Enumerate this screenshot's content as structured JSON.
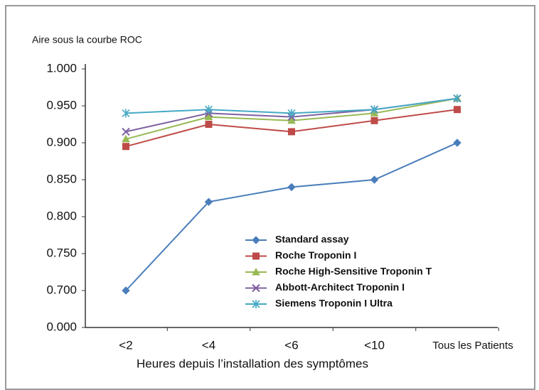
{
  "chart_data": {
    "type": "line",
    "y_axis_label": "Aire sous la courbe ROC",
    "x_axis_label": "Heures depuis l’installation des symptômes",
    "categories": [
      "<2",
      "<4",
      "<6",
      "<10",
      "Tous les Patients"
    ],
    "series": [
      {
        "name": "Standard assay",
        "color": "#4a7ebb",
        "marker": "diamond",
        "values": [
          0.7,
          0.82,
          0.84,
          0.85,
          0.9
        ]
      },
      {
        "name": "Roche Troponin I",
        "color": "#be4b48",
        "marker": "square",
        "values": [
          0.895,
          0.925,
          0.915,
          0.93,
          0.945
        ]
      },
      {
        "name": "Roche High-Sensitive Troponin T",
        "color": "#98b954",
        "marker": "triangle",
        "values": [
          0.905,
          0.935,
          0.93,
          0.94,
          0.96
        ]
      },
      {
        "name": "Abbott-Architect Troponin I",
        "color": "#7d60a0",
        "marker": "x",
        "values": [
          0.915,
          0.94,
          0.935,
          0.945,
          0.96
        ]
      },
      {
        "name": "Siemens Troponin I Ultra",
        "color": "#46aac5",
        "marker": "star",
        "values": [
          0.94,
          0.945,
          0.94,
          0.945,
          0.96
        ]
      }
    ],
    "ylim": [
      0.65,
      1.0
    ],
    "axis_break": true,
    "yticks": [
      {
        "value": 0,
        "label": "0.000"
      },
      {
        "value": 0.7,
        "label": "0.700"
      },
      {
        "value": 0.75,
        "label": "0.750"
      },
      {
        "value": 0.8,
        "label": "0.800"
      },
      {
        "value": 0.85,
        "label": "0.850"
      },
      {
        "value": 0.9,
        "label": "0.900"
      },
      {
        "value": 0.95,
        "label": "0.950"
      },
      {
        "value": 1.0,
        "label": "1.000"
      }
    ],
    "grid": false,
    "legend_position": "lower right"
  }
}
